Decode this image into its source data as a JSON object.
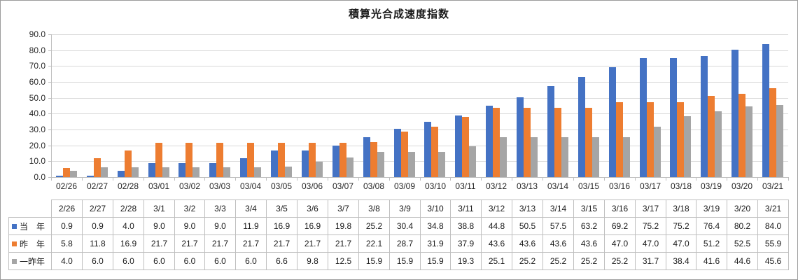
{
  "chart_data": {
    "type": "bar",
    "title": "積算光合成速度指数",
    "x_axis_labels": [
      "02/26",
      "02/27",
      "02/28",
      "03/01",
      "03/02",
      "03/03",
      "03/04",
      "03/05",
      "03/06",
      "03/07",
      "03/08",
      "03/09",
      "03/10",
      "03/11",
      "03/12",
      "03/13",
      "03/14",
      "03/15",
      "03/16",
      "03/17",
      "03/18",
      "03/19",
      "03/20",
      "03/21"
    ],
    "table_headers": [
      "2/26",
      "2/27",
      "2/28",
      "3/1",
      "3/2",
      "3/3",
      "3/4",
      "3/5",
      "3/6",
      "3/7",
      "3/8",
      "3/9",
      "3/10",
      "3/11",
      "3/12",
      "3/13",
      "3/14",
      "3/15",
      "3/16",
      "3/17",
      "3/18",
      "3/19",
      "3/20",
      "3/21"
    ],
    "series": [
      {
        "name": "当　年",
        "color": "#4472C4",
        "values": [
          0.9,
          0.9,
          4.0,
          9.0,
          9.0,
          9.0,
          11.9,
          16.9,
          16.9,
          19.8,
          25.2,
          30.4,
          34.8,
          38.8,
          44.8,
          50.5,
          57.5,
          63.2,
          69.2,
          75.2,
          75.2,
          76.4,
          80.2,
          84.0
        ]
      },
      {
        "name": "昨　年",
        "color": "#ED7D31",
        "values": [
          5.8,
          11.8,
          16.9,
          21.7,
          21.7,
          21.7,
          21.7,
          21.7,
          21.7,
          21.7,
          22.1,
          28.7,
          31.9,
          37.9,
          43.6,
          43.6,
          43.6,
          43.6,
          47.0,
          47.0,
          47.0,
          51.2,
          52.5,
          55.9
        ]
      },
      {
        "name": "一昨年",
        "color": "#A5A5A5",
        "values": [
          4.0,
          6.0,
          6.0,
          6.0,
          6.0,
          6.0,
          6.0,
          6.6,
          9.8,
          12.5,
          15.9,
          15.9,
          15.9,
          19.3,
          25.1,
          25.2,
          25.2,
          25.2,
          25.2,
          31.7,
          38.4,
          41.6,
          44.6,
          45.6
        ]
      }
    ],
    "ylim": [
      0,
      90
    ],
    "ytick_step": 10,
    "ytick_decimals": 1,
    "grid": true,
    "legend_position": "table-rows-left"
  },
  "style": {
    "background": "#FFFFFF",
    "frame_border_color": "#9C9C9C",
    "gridline_color": "#D9D9D9",
    "axis_line_color": "#BFBFBF",
    "table_border_color": "#BFBFBF",
    "text_color": "#262626"
  }
}
